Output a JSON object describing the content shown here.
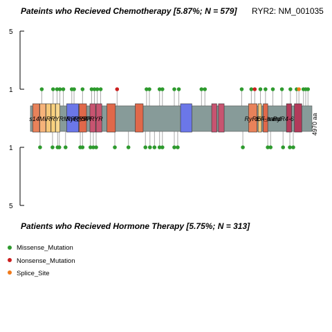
{
  "chart_data": {
    "type": "lollipop",
    "title_top": "Pateints who Recieved Chemotherapy [5.87%; N = 579]",
    "gene_label": "RYR2: NM_001035",
    "title_bottom": "Patients who Recieved Hormone Therapy [5.75%; N = 313]",
    "protein_length": 4970,
    "length_label": "4970 aa",
    "y_ticks_top": [
      "5",
      "1"
    ],
    "y_ticks_bottom": [
      "1",
      "5"
    ],
    "ylim_top": [
      0,
      5
    ],
    "ylim_bottom": [
      0,
      5
    ],
    "domain_labels": [
      {
        "text": "s14MIRRYRMIR_RYR",
        "pos": 150
      },
      {
        "text": "RyR_SPRYR",
        "pos": 800
      },
      {
        "text": "RYR",
        "pos": 950
      },
      {
        "text": "RyREF-hand",
        "pos": 3950
      },
      {
        "text": "Ion_trans",
        "pos": 4150
      },
      {
        "text": "RyR4-6",
        "pos": 4450
      }
    ],
    "domains": [
      {
        "start": 40,
        "end": 160,
        "color": "#E8825A"
      },
      {
        "start": 165,
        "end": 270,
        "color": "#F6B37A"
      },
      {
        "start": 275,
        "end": 360,
        "color": "#F5C87A"
      },
      {
        "start": 365,
        "end": 440,
        "color": "#F8D07E"
      },
      {
        "start": 445,
        "end": 520,
        "color": "#F8D890"
      },
      {
        "start": 640,
        "end": 850,
        "color": "#6B77E8"
      },
      {
        "start": 860,
        "end": 990,
        "color": "#E0684A"
      },
      {
        "start": 1050,
        "end": 1150,
        "color": "#C75470"
      },
      {
        "start": 1160,
        "end": 1260,
        "color": "#C75470"
      },
      {
        "start": 1350,
        "end": 1500,
        "color": "#E0684A"
      },
      {
        "start": 1850,
        "end": 1990,
        "color": "#E0684A"
      },
      {
        "start": 2650,
        "end": 2850,
        "color": "#6B77E8"
      },
      {
        "start": 3200,
        "end": 3290,
        "color": "#C75470"
      },
      {
        "start": 3320,
        "end": 3420,
        "color": "#C75470"
      },
      {
        "start": 3850,
        "end": 4000,
        "color": "#E8825A"
      },
      {
        "start": 4020,
        "end": 4080,
        "color": "#F5C87A"
      },
      {
        "start": 4110,
        "end": 4190,
        "color": "#E0684A"
      },
      {
        "start": 4520,
        "end": 4610,
        "color": "#B23A5A"
      },
      {
        "start": 4660,
        "end": 4790,
        "color": "#B23A5A"
      }
    ],
    "mutations_top": [
      {
        "pos": 200,
        "type": "Missense_Mutation",
        "count": 1
      },
      {
        "pos": 400,
        "type": "Missense_Mutation",
        "count": 1
      },
      {
        "pos": 470,
        "type": "Missense_Mutation",
        "count": 1
      },
      {
        "pos": 520,
        "type": "Missense_Mutation",
        "count": 1
      },
      {
        "pos": 580,
        "type": "Missense_Mutation",
        "count": 1
      },
      {
        "pos": 730,
        "type": "Missense_Mutation",
        "count": 1
      },
      {
        "pos": 770,
        "type": "Missense_Mutation",
        "count": 1
      },
      {
        "pos": 920,
        "type": "Missense_Mutation",
        "count": 1
      },
      {
        "pos": 1080,
        "type": "Missense_Mutation",
        "count": 1
      },
      {
        "pos": 1130,
        "type": "Missense_Mutation",
        "count": 1
      },
      {
        "pos": 1180,
        "type": "Missense_Mutation",
        "count": 1
      },
      {
        "pos": 1240,
        "type": "Missense_Mutation",
        "count": 1
      },
      {
        "pos": 1530,
        "type": "Nonsense_Mutation",
        "count": 1
      },
      {
        "pos": 2050,
        "type": "Missense_Mutation",
        "count": 1
      },
      {
        "pos": 2100,
        "type": "Missense_Mutation",
        "count": 1
      },
      {
        "pos": 2280,
        "type": "Missense_Mutation",
        "count": 1
      },
      {
        "pos": 2330,
        "type": "Missense_Mutation",
        "count": 1
      },
      {
        "pos": 2540,
        "type": "Missense_Mutation",
        "count": 1
      },
      {
        "pos": 2620,
        "type": "Missense_Mutation",
        "count": 1
      },
      {
        "pos": 3020,
        "type": "Missense_Mutation",
        "count": 1
      },
      {
        "pos": 3080,
        "type": "Missense_Mutation",
        "count": 1
      },
      {
        "pos": 3730,
        "type": "Missense_Mutation",
        "count": 1
      },
      {
        "pos": 3900,
        "type": "Missense_Mutation",
        "count": 1
      },
      {
        "pos": 3960,
        "type": "Nonsense_Mutation",
        "count": 1
      },
      {
        "pos": 4060,
        "type": "Missense_Mutation",
        "count": 1
      },
      {
        "pos": 4150,
        "type": "Missense_Mutation",
        "count": 1
      },
      {
        "pos": 4280,
        "type": "Missense_Mutation",
        "count": 1
      },
      {
        "pos": 4440,
        "type": "Missense_Mutation",
        "count": 1
      },
      {
        "pos": 4590,
        "type": "Missense_Mutation",
        "count": 1
      },
      {
        "pos": 4820,
        "type": "Missense_Mutation",
        "count": 1
      },
      {
        "pos": 4860,
        "type": "Missense_Mutation",
        "count": 1
      },
      {
        "pos": 4900,
        "type": "Missense_Mutation",
        "count": 1
      }
    ],
    "mutations_top_extra": [
      {
        "pos": 4700,
        "type": "Missense_Mutation",
        "count": 1
      },
      {
        "pos": 4740,
        "type": "Splice_Site",
        "count": 1
      }
    ],
    "mutations_bottom": [
      {
        "pos": 170,
        "type": "Missense_Mutation",
        "count": 1
      },
      {
        "pos": 390,
        "type": "Missense_Mutation",
        "count": 1
      },
      {
        "pos": 480,
        "type": "Missense_Mutation",
        "count": 1
      },
      {
        "pos": 510,
        "type": "Missense_Mutation",
        "count": 1
      },
      {
        "pos": 620,
        "type": "Missense_Mutation",
        "count": 1
      },
      {
        "pos": 880,
        "type": "Missense_Mutation",
        "count": 1
      },
      {
        "pos": 920,
        "type": "Missense_Mutation",
        "count": 1
      },
      {
        "pos": 1060,
        "type": "Missense_Mutation",
        "count": 1
      },
      {
        "pos": 1110,
        "type": "Missense_Mutation",
        "count": 1
      },
      {
        "pos": 1160,
        "type": "Missense_Mutation",
        "count": 1
      },
      {
        "pos": 1490,
        "type": "Missense_Mutation",
        "count": 1
      },
      {
        "pos": 1730,
        "type": "Missense_Mutation",
        "count": 1
      },
      {
        "pos": 2030,
        "type": "Missense_Mutation",
        "count": 1
      },
      {
        "pos": 2110,
        "type": "Missense_Mutation",
        "count": 1
      },
      {
        "pos": 2190,
        "type": "Missense_Mutation",
        "count": 1
      },
      {
        "pos": 2280,
        "type": "Missense_Mutation",
        "count": 1
      },
      {
        "pos": 2330,
        "type": "Missense_Mutation",
        "count": 1
      },
      {
        "pos": 2540,
        "type": "Missense_Mutation",
        "count": 1
      },
      {
        "pos": 2600,
        "type": "Missense_Mutation",
        "count": 1
      },
      {
        "pos": 3750,
        "type": "Missense_Mutation",
        "count": 1
      },
      {
        "pos": 4190,
        "type": "Missense_Mutation",
        "count": 1
      },
      {
        "pos": 4240,
        "type": "Missense_Mutation",
        "count": 1
      },
      {
        "pos": 4460,
        "type": "Missense_Mutation",
        "count": 1
      },
      {
        "pos": 4580,
        "type": "Missense_Mutation",
        "count": 1
      },
      {
        "pos": 4640,
        "type": "Missense_Mutation",
        "count": 1
      }
    ],
    "legend": [
      {
        "label": "Missense_Mutation",
        "color": "#2E9A2E"
      },
      {
        "label": "Nonsense_Mutation",
        "color": "#CC1F1F"
      },
      {
        "label": "Splice_Site",
        "color": "#F07A1A"
      }
    ],
    "colors": {
      "backbone": "#879B99",
      "stem": "#A8A8A8"
    }
  }
}
